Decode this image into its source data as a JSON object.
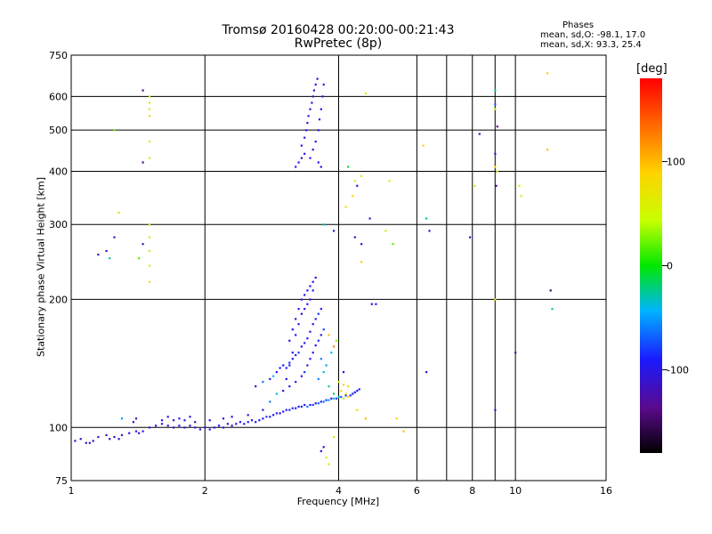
{
  "header": {
    "title_line1": "Tromsø 20160428 00:20:00-00:21:43",
    "title_line2": "RwPretec (8p)",
    "phases_label": "Phases",
    "phase_o": "mean, sd,O: -98.1, 17.0",
    "phase_x": "mean, sd,X:  93.3, 25.4"
  },
  "colorbar": {
    "unit": "[deg]",
    "ticks": [
      {
        "value": 100,
        "label": "100"
      },
      {
        "value": 0,
        "label": "0"
      },
      {
        "value": -100,
        "label": "-100"
      }
    ],
    "range": [
      -180,
      180
    ]
  },
  "chart_data": {
    "type": "scatter",
    "title": "Tromsø 20160428 00:20:00-00:21:43",
    "subtitle": "RwPretec (8p)",
    "xlabel": "Frequency [MHz]",
    "ylabel": "Stationary phase Virtual Height [km]",
    "xscale": "log",
    "yscale": "log",
    "xlim": [
      1,
      16
    ],
    "ylim": [
      75,
      750
    ],
    "grid": true,
    "x_ticks": [
      {
        "value": 1,
        "label": "1"
      },
      {
        "value": 2,
        "label": "2"
      },
      {
        "value": 4,
        "label": "4"
      },
      {
        "value": 6,
        "label": "6"
      },
      {
        "value": 8,
        "label": "8"
      },
      {
        "value": 10,
        "label": "10"
      },
      {
        "value": 16,
        "label": "16"
      }
    ],
    "x_minor_grid": [
      7,
      9
    ],
    "y_ticks": [
      {
        "value": 75,
        "label": "75"
      },
      {
        "value": 100,
        "label": "100"
      },
      {
        "value": 200,
        "label": "200"
      },
      {
        "value": 300,
        "label": "300"
      },
      {
        "value": 400,
        "label": "400"
      },
      {
        "value": 500,
        "label": "500"
      },
      {
        "value": 600,
        "label": "600"
      },
      {
        "value": 750,
        "label": "750"
      }
    ],
    "points": [
      [
        1.02,
        93,
        -110
      ],
      [
        1.05,
        94,
        -115
      ],
      [
        1.08,
        92,
        -120
      ],
      [
        1.1,
        92,
        -110
      ],
      [
        1.12,
        93,
        -115
      ],
      [
        1.15,
        95,
        -110
      ],
      [
        1.2,
        96,
        -115
      ],
      [
        1.22,
        94,
        -105
      ],
      [
        1.25,
        95,
        -110
      ],
      [
        1.28,
        94,
        -115
      ],
      [
        1.3,
        96,
        -110
      ],
      [
        1.35,
        97,
        -105
      ],
      [
        1.4,
        98,
        -100
      ],
      [
        1.42,
        97,
        -110
      ],
      [
        1.45,
        98,
        -105
      ],
      [
        1.5,
        100,
        -95
      ],
      [
        1.55,
        101,
        -105
      ],
      [
        1.6,
        102,
        -110
      ],
      [
        1.65,
        101,
        -100
      ],
      [
        1.7,
        100,
        -105
      ],
      [
        1.75,
        101,
        -95
      ],
      [
        1.8,
        100,
        -110
      ],
      [
        1.85,
        101,
        -105
      ],
      [
        1.9,
        100,
        -100
      ],
      [
        1.95,
        99,
        -110
      ],
      [
        2.0,
        100,
        -105
      ],
      [
        2.05,
        99,
        -100
      ],
      [
        2.1,
        100,
        -110
      ],
      [
        2.15,
        101,
        -95
      ],
      [
        2.2,
        100,
        -100
      ],
      [
        2.25,
        102,
        -105
      ],
      [
        2.3,
        101,
        -110
      ],
      [
        2.35,
        102,
        -100
      ],
      [
        2.4,
        103,
        -95
      ],
      [
        2.45,
        102,
        -105
      ],
      [
        2.5,
        103,
        -100
      ],
      [
        2.55,
        104,
        -90
      ],
      [
        2.6,
        103,
        -105
      ],
      [
        2.65,
        104,
        -100
      ],
      [
        2.7,
        105,
        -95
      ],
      [
        2.75,
        106,
        -80
      ],
      [
        2.8,
        106,
        -100
      ],
      [
        2.85,
        107,
        -90
      ],
      [
        2.9,
        108,
        -95
      ],
      [
        2.95,
        108,
        -105
      ],
      [
        3.0,
        109,
        -90
      ],
      [
        3.05,
        110,
        -100
      ],
      [
        3.1,
        110,
        -85
      ],
      [
        3.15,
        111,
        -95
      ],
      [
        3.2,
        111,
        -90
      ],
      [
        3.25,
        112,
        -100
      ],
      [
        3.3,
        112,
        -85
      ],
      [
        3.35,
        113,
        -95
      ],
      [
        3.4,
        112,
        -60
      ],
      [
        3.45,
        113,
        -90
      ],
      [
        3.5,
        113,
        -80
      ],
      [
        3.55,
        114,
        -95
      ],
      [
        3.6,
        114,
        -70
      ],
      [
        3.65,
        115,
        -90
      ],
      [
        3.7,
        115,
        -60
      ],
      [
        3.75,
        116,
        -85
      ],
      [
        3.8,
        116,
        -50
      ],
      [
        3.85,
        117,
        -90
      ],
      [
        3.9,
        117,
        -40
      ],
      [
        3.95,
        117,
        -80
      ],
      [
        4.0,
        118,
        -30
      ],
      [
        4.05,
        118,
        -70
      ],
      [
        4.1,
        117,
        50
      ],
      [
        4.15,
        119,
        -90
      ],
      [
        4.2,
        118,
        90
      ],
      [
        4.25,
        119,
        -95
      ],
      [
        4.3,
        120,
        -100
      ],
      [
        4.35,
        121,
        -90
      ],
      [
        4.4,
        122,
        -100
      ],
      [
        4.45,
        123,
        -95
      ],
      [
        1.4,
        105,
        -110
      ],
      [
        1.38,
        103,
        -105
      ],
      [
        1.6,
        104,
        -100
      ],
      [
        1.65,
        106,
        -105
      ],
      [
        1.7,
        104,
        -110
      ],
      [
        1.75,
        105,
        -95
      ],
      [
        1.8,
        104,
        -100
      ],
      [
        1.85,
        106,
        -105
      ],
      [
        1.9,
        103,
        -110
      ],
      [
        2.05,
        104,
        -100
      ],
      [
        2.2,
        105,
        -95
      ],
      [
        2.3,
        106,
        -100
      ],
      [
        2.5,
        107,
        -95
      ],
      [
        2.7,
        110,
        -90
      ],
      [
        2.8,
        115,
        -60
      ],
      [
        2.9,
        120,
        -40
      ],
      [
        3.0,
        122,
        -100
      ],
      [
        3.1,
        125,
        -90
      ],
      [
        3.2,
        128,
        -100
      ],
      [
        3.3,
        132,
        -95
      ],
      [
        3.35,
        135,
        -80
      ],
      [
        3.4,
        140,
        -100
      ],
      [
        3.45,
        145,
        -90
      ],
      [
        3.5,
        150,
        -100
      ],
      [
        3.55,
        156,
        -95
      ],
      [
        3.6,
        160,
        -85
      ],
      [
        3.65,
        165,
        -100
      ],
      [
        3.7,
        170,
        -75
      ],
      [
        2.6,
        125,
        -95
      ],
      [
        2.7,
        128,
        -60
      ],
      [
        2.8,
        130,
        -100
      ],
      [
        2.85,
        132,
        -40
      ],
      [
        2.9,
        135,
        -95
      ],
      [
        2.95,
        138,
        -100
      ],
      [
        3.0,
        140,
        -90
      ],
      [
        3.05,
        138,
        -100
      ],
      [
        3.1,
        142,
        -85
      ],
      [
        3.15,
        145,
        -95
      ],
      [
        3.2,
        148,
        -100
      ],
      [
        3.25,
        150,
        -80
      ],
      [
        3.3,
        155,
        -95
      ],
      [
        3.35,
        158,
        -100
      ],
      [
        3.4,
        162,
        -90
      ],
      [
        3.45,
        168,
        -100
      ],
      [
        3.5,
        175,
        -95
      ],
      [
        3.55,
        180,
        -100
      ],
      [
        3.6,
        185,
        -85
      ],
      [
        3.65,
        190,
        -100
      ],
      [
        3.1,
        160,
        -100
      ],
      [
        3.15,
        170,
        -95
      ],
      [
        3.2,
        180,
        -100
      ],
      [
        3.25,
        190,
        -90
      ],
      [
        3.3,
        200,
        -100
      ],
      [
        3.35,
        205,
        -95
      ],
      [
        3.4,
        210,
        -100
      ],
      [
        3.45,
        215,
        -95
      ],
      [
        3.5,
        220,
        -100
      ],
      [
        3.55,
        225,
        -95
      ],
      [
        3.5,
        210,
        -90
      ],
      [
        3.45,
        200,
        -100
      ],
      [
        3.4,
        195,
        -95
      ],
      [
        3.35,
        190,
        -100
      ],
      [
        3.3,
        185,
        -95
      ],
      [
        3.25,
        175,
        -100
      ],
      [
        3.2,
        165,
        -90
      ],
      [
        3.15,
        150,
        -100
      ],
      [
        3.1,
        140,
        -95
      ],
      [
        3.05,
        130,
        -100
      ],
      [
        3.6,
        130,
        -60
      ],
      [
        3.7,
        135,
        -40
      ],
      [
        3.8,
        125,
        -30
      ],
      [
        3.9,
        120,
        -20
      ],
      [
        4.0,
        128,
        70
      ],
      [
        4.05,
        122,
        80
      ],
      [
        4.1,
        126,
        90
      ],
      [
        4.15,
        120,
        60
      ],
      [
        4.2,
        125,
        75
      ],
      [
        3.75,
        140,
        -50
      ],
      [
        3.65,
        145,
        -60
      ],
      [
        3.85,
        150,
        -40
      ],
      [
        3.95,
        160,
        30
      ],
      [
        3.8,
        165,
        100
      ],
      [
        3.9,
        155,
        120
      ],
      [
        4.1,
        135,
        -90
      ],
      [
        3.2,
        410,
        -100
      ],
      [
        3.25,
        420,
        -95
      ],
      [
        3.3,
        430,
        -110
      ],
      [
        3.35,
        440,
        -100
      ],
      [
        3.3,
        460,
        -95
      ],
      [
        3.35,
        480,
        -105
      ],
      [
        3.38,
        500,
        -100
      ],
      [
        3.4,
        520,
        -110
      ],
      [
        3.42,
        540,
        -95
      ],
      [
        3.45,
        560,
        -100
      ],
      [
        3.48,
        580,
        -105
      ],
      [
        3.5,
        600,
        -110
      ],
      [
        3.52,
        620,
        -100
      ],
      [
        3.55,
        640,
        -95
      ],
      [
        3.58,
        660,
        -110
      ],
      [
        3.45,
        430,
        -100
      ],
      [
        3.5,
        450,
        -95
      ],
      [
        3.55,
        470,
        -105
      ],
      [
        3.6,
        500,
        -110
      ],
      [
        3.62,
        530,
        -100
      ],
      [
        3.65,
        560,
        -95
      ],
      [
        3.68,
        600,
        -100
      ],
      [
        3.7,
        640,
        -110
      ],
      [
        3.65,
        410,
        -100
      ],
      [
        3.6,
        420,
        -95
      ],
      [
        1.45,
        620,
        -130
      ],
      [
        1.5,
        600,
        60
      ],
      [
        1.5,
        580,
        70
      ],
      [
        1.5,
        560,
        65
      ],
      [
        1.5,
        540,
        80
      ],
      [
        1.5,
        470,
        70
      ],
      [
        1.5,
        430,
        75
      ],
      [
        1.45,
        420,
        -130
      ],
      [
        1.5,
        300,
        60
      ],
      [
        1.5,
        280,
        65
      ],
      [
        1.5,
        260,
        70
      ],
      [
        1.5,
        240,
        65
      ],
      [
        1.5,
        220,
        80
      ],
      [
        1.45,
        270,
        -120
      ],
      [
        1.42,
        250,
        20
      ],
      [
        1.25,
        280,
        -110
      ],
      [
        1.2,
        260,
        -100
      ],
      [
        1.15,
        255,
        -120
      ],
      [
        1.22,
        250,
        -30
      ],
      [
        1.28,
        320,
        40
      ],
      [
        1.25,
        500,
        20
      ],
      [
        1.3,
        105,
        -50
      ],
      [
        3.7,
        300,
        -30
      ],
      [
        3.9,
        290,
        -110
      ],
      [
        4.15,
        330,
        80
      ],
      [
        4.2,
        410,
        -10
      ],
      [
        4.35,
        380,
        60
      ],
      [
        4.4,
        370,
        -100
      ],
      [
        4.5,
        390,
        40
      ],
      [
        4.3,
        350,
        90
      ],
      [
        4.35,
        280,
        -110
      ],
      [
        4.5,
        270,
        -100
      ],
      [
        4.7,
        310,
        -120
      ],
      [
        4.75,
        195,
        -100
      ],
      [
        4.85,
        195,
        -110
      ],
      [
        5.2,
        380,
        60
      ],
      [
        5.1,
        290,
        40
      ],
      [
        5.3,
        270,
        20
      ],
      [
        4.6,
        610,
        70
      ],
      [
        4.5,
        245,
        90
      ],
      [
        6.2,
        460,
        90
      ],
      [
        6.3,
        310,
        -20
      ],
      [
        6.4,
        290,
        -110
      ],
      [
        6.3,
        135,
        -100
      ],
      [
        7.9,
        280,
        -110
      ],
      [
        8.1,
        370,
        60
      ],
      [
        8.3,
        490,
        -130
      ],
      [
        9.0,
        620,
        -20
      ],
      [
        9.0,
        575,
        -70
      ],
      [
        9.0,
        560,
        40
      ],
      [
        9.1,
        510,
        -140
      ],
      [
        9.0,
        440,
        -110
      ],
      [
        9.0,
        410,
        90
      ],
      [
        9.1,
        400,
        60
      ],
      [
        9.05,
        370,
        -130
      ],
      [
        9.0,
        200,
        80
      ],
      [
        9.0,
        110,
        -110
      ],
      [
        10.2,
        370,
        60
      ],
      [
        10.3,
        350,
        50
      ],
      [
        10.0,
        150,
        -120
      ],
      [
        11.8,
        680,
        90
      ],
      [
        11.8,
        450,
        100
      ],
      [
        12.0,
        210,
        -150
      ],
      [
        12.1,
        190,
        -30
      ],
      [
        5.4,
        105,
        90
      ],
      [
        5.6,
        98,
        100
      ],
      [
        4.6,
        105,
        100
      ],
      [
        4.4,
        110,
        80
      ],
      [
        3.9,
        95,
        70
      ],
      [
        3.7,
        90,
        -110
      ],
      [
        3.75,
        85,
        60
      ],
      [
        3.8,
        82,
        70
      ],
      [
        3.65,
        88,
        -100
      ]
    ]
  }
}
